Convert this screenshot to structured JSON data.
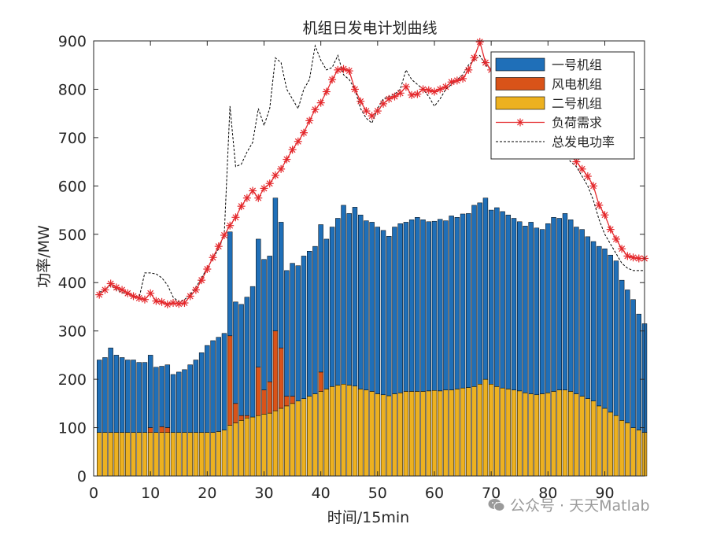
{
  "chart_data": {
    "type": "bar",
    "title": "机组日发电计划曲线",
    "xlabel": "时间/15min",
    "ylabel": "功率/MW",
    "xlim": [
      0,
      97
    ],
    "ylim": [
      0,
      900
    ],
    "xticks": [
      0,
      10,
      20,
      30,
      40,
      50,
      60,
      70,
      80,
      90
    ],
    "yticks": [
      0,
      100,
      200,
      300,
      400,
      500,
      600,
      700,
      800,
      900
    ],
    "legend_position": "top-right",
    "colors": {
      "unit1": "#1f6fb8",
      "wind": "#d95319",
      "unit2": "#edb120",
      "demand": "#e4282c",
      "total": "#000000"
    },
    "series": [
      {
        "name": "一号机组",
        "kind": "stacked-bar",
        "color": "#1f6fb8",
        "values": [
          150,
          155,
          175,
          160,
          155,
          150,
          150,
          145,
          145,
          150,
          135,
          125,
          130,
          120,
          125,
          130,
          140,
          150,
          165,
          180,
          190,
          195,
          200,
          215,
          210,
          230,
          245,
          270,
          265,
          270,
          260,
          275,
          260,
          260,
          275,
          280,
          295,
          300,
          305,
          305,
          310,
          330,
          345,
          370,
          355,
          370,
          360,
          350,
          350,
          345,
          340,
          330,
          345,
          350,
          350,
          355,
          360,
          355,
          350,
          350,
          355,
          350,
          360,
          355,
          360,
          360,
          375,
          375,
          375,
          360,
          370,
          365,
          360,
          355,
          350,
          345,
          355,
          345,
          340,
          350,
          360,
          355,
          365,
          355,
          345,
          345,
          335,
          330,
          330,
          330,
          325,
          320,
          290,
          275,
          265,
          240,
          225
        ]
      },
      {
        "name": "风电机组",
        "kind": "stacked-bar",
        "color": "#d95319",
        "values": [
          0,
          0,
          0,
          0,
          0,
          0,
          0,
          0,
          0,
          10,
          0,
          12,
          10,
          0,
          0,
          0,
          0,
          0,
          0,
          0,
          0,
          0,
          0,
          185,
          40,
          10,
          5,
          0,
          100,
          50,
          65,
          165,
          125,
          20,
          15,
          0,
          0,
          0,
          0,
          40,
          0,
          0,
          0,
          0,
          0,
          0,
          0,
          0,
          0,
          0,
          0,
          0,
          0,
          0,
          0,
          0,
          0,
          0,
          0,
          0,
          0,
          0,
          0,
          0,
          0,
          0,
          0,
          0,
          0,
          0,
          0,
          0,
          0,
          0,
          0,
          0,
          0,
          0,
          0,
          0,
          0,
          0,
          0,
          0,
          0,
          0,
          0,
          0,
          0,
          0,
          0,
          0,
          0,
          0,
          0,
          0,
          0
        ]
      },
      {
        "name": "二号机组",
        "kind": "stacked-bar",
        "color": "#edb120",
        "values": [
          90,
          90,
          90,
          90,
          90,
          90,
          90,
          90,
          90,
          90,
          90,
          90,
          90,
          90,
          90,
          90,
          90,
          90,
          90,
          90,
          90,
          92,
          95,
          105,
          110,
          115,
          120,
          122,
          125,
          128,
          130,
          135,
          140,
          145,
          150,
          155,
          160,
          165,
          170,
          175,
          180,
          185,
          188,
          190,
          188,
          186,
          180,
          178,
          175,
          170,
          168,
          166,
          170,
          172,
          175,
          175,
          175,
          175,
          176,
          177,
          176,
          178,
          178,
          180,
          182,
          183,
          185,
          190,
          200,
          190,
          185,
          182,
          180,
          178,
          176,
          172,
          170,
          168,
          170,
          172,
          175,
          178,
          178,
          175,
          170,
          165,
          160,
          155,
          145,
          140,
          132,
          125,
          115,
          110,
          100,
          95,
          90
        ]
      },
      {
        "name": "负荷需求",
        "kind": "line-marker",
        "color": "#e4282c",
        "x": [
          1,
          2,
          3,
          4,
          5,
          6,
          7,
          8,
          9,
          10,
          11,
          12,
          13,
          14,
          15,
          16,
          17,
          18,
          19,
          20,
          21,
          22,
          23,
          24,
          25,
          26,
          27,
          28,
          29,
          30,
          31,
          32,
          33,
          34,
          35,
          36,
          37,
          38,
          39,
          40,
          41,
          42,
          43,
          44,
          45,
          46,
          47,
          48,
          49,
          50,
          51,
          52,
          53,
          54,
          55,
          56,
          57,
          58,
          59,
          60,
          61,
          62,
          63,
          64,
          65,
          66,
          67,
          68,
          69,
          70,
          71,
          72,
          73,
          74,
          75,
          76,
          77,
          78,
          79,
          80,
          81,
          82,
          83,
          84,
          85,
          86,
          87,
          88,
          89,
          90,
          91,
          92,
          93,
          94,
          95,
          96,
          97
        ],
        "values": [
          375,
          385,
          398,
          390,
          385,
          378,
          372,
          368,
          365,
          378,
          362,
          360,
          355,
          358,
          356,
          358,
          372,
          385,
          405,
          428,
          452,
          475,
          498,
          518,
          535,
          558,
          575,
          590,
          575,
          595,
          605,
          622,
          635,
          655,
          675,
          692,
          710,
          735,
          758,
          772,
          795,
          820,
          840,
          842,
          838,
          800,
          775,
          755,
          745,
          755,
          770,
          780,
          785,
          792,
          805,
          788,
          790,
          800,
          798,
          795,
          800,
          805,
          815,
          818,
          822,
          840,
          865,
          898,
          855,
          840,
          818,
          815,
          810,
          808,
          808,
          800,
          790,
          775,
          765,
          750,
          720,
          695,
          675,
          665,
          650,
          635,
          620,
          600,
          560,
          540,
          510,
          490,
          470,
          455,
          452,
          450,
          450
        ]
      },
      {
        "name": "总发电功率",
        "kind": "line-dashed",
        "color": "#000000",
        "x": [
          1,
          2,
          3,
          4,
          5,
          6,
          7,
          8,
          9,
          10,
          11,
          12,
          13,
          14,
          15,
          16,
          17,
          18,
          19,
          20,
          21,
          22,
          23,
          24,
          25,
          26,
          27,
          28,
          29,
          30,
          31,
          32,
          33,
          34,
          35,
          36,
          37,
          38,
          39,
          40,
          41,
          42,
          43,
          44,
          45,
          46,
          47,
          48,
          49,
          50,
          51,
          52,
          53,
          54,
          55,
          56,
          57,
          58,
          59,
          60,
          61,
          62,
          63,
          64,
          65,
          66,
          67,
          68,
          69,
          70,
          71,
          72,
          73,
          74,
          75,
          76,
          77,
          78,
          79,
          80,
          81,
          82,
          83,
          84,
          85,
          86,
          87,
          88,
          89,
          90,
          91,
          92,
          93,
          94,
          95,
          96,
          97
        ],
        "values": [
          380,
          385,
          395,
          385,
          380,
          375,
          370,
          368,
          420,
          420,
          418,
          410,
          395,
          370,
          360,
          365,
          375,
          390,
          410,
          430,
          450,
          470,
          500,
          765,
          640,
          645,
          670,
          690,
          760,
          725,
          760,
          865,
          855,
          800,
          780,
          760,
          800,
          820,
          890,
          860,
          840,
          845,
          870,
          830,
          820,
          800,
          760,
          740,
          730,
          760,
          780,
          785,
          790,
          800,
          840,
          820,
          810,
          800,
          785,
          765,
          780,
          800,
          810,
          820,
          830,
          850,
          860,
          870,
          850,
          840,
          830,
          820,
          815,
          810,
          808,
          800,
          790,
          780,
          770,
          760,
          720,
          690,
          665,
          650,
          640,
          620,
          600,
          570,
          530,
          500,
          480,
          460,
          440,
          430,
          425,
          425,
          425
        ]
      }
    ]
  },
  "watermark": {
    "text": "公众号 · 天天Matlab"
  }
}
